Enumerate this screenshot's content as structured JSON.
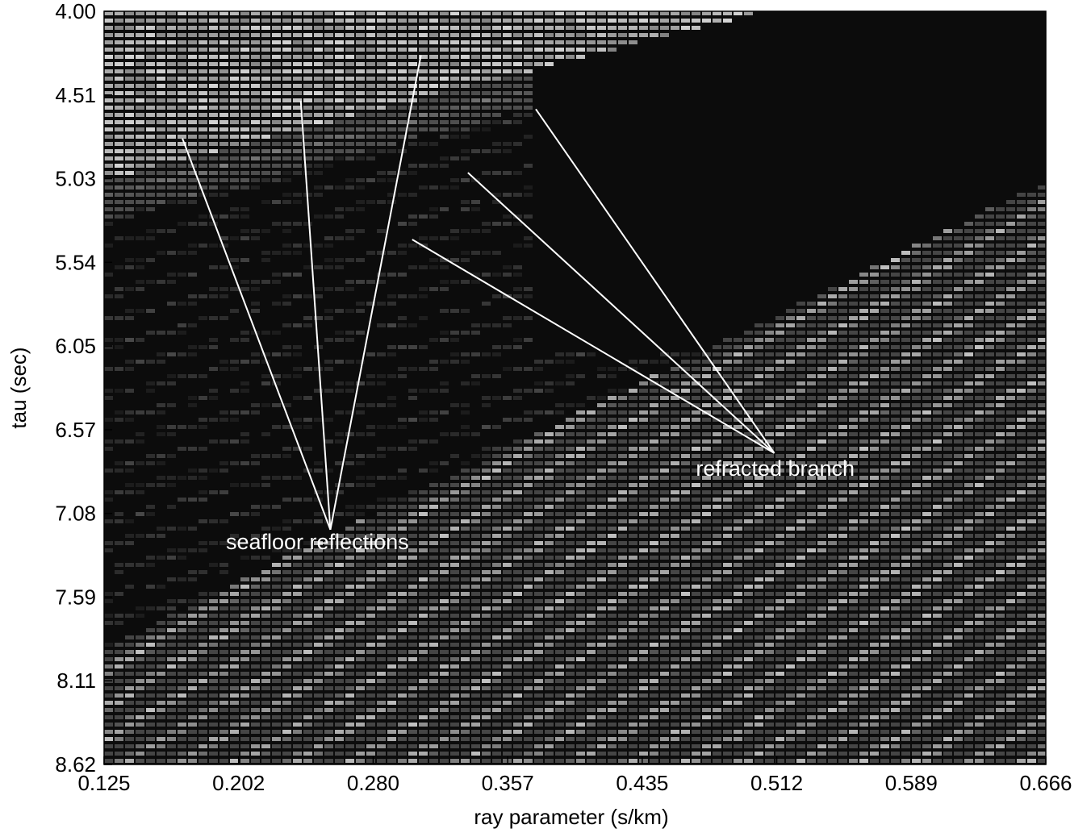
{
  "chart_data": {
    "type": "heatmap",
    "title": "",
    "xlabel": "ray parameter (s/km)",
    "ylabel": "tau (sec)",
    "xlim": [
      0.125,
      0.666
    ],
    "ylim": [
      4.0,
      8.62
    ],
    "y_inverted": true,
    "x_ticks": [
      "0.125",
      "0.202",
      "0.280",
      "0.357",
      "0.435",
      "0.512",
      "0.589",
      "0.666"
    ],
    "y_ticks": [
      "4.00",
      "4.51",
      "5.03",
      "5.54",
      "6.05",
      "6.57",
      "7.08",
      "7.59",
      "8.11",
      "8.62"
    ],
    "colormap": "grayscale",
    "grid": false,
    "annotations": [
      {
        "text": "seafloor reflections",
        "text_pos": [
          0.195,
          7.3
        ],
        "apex": [
          0.255,
          7.18
        ],
        "pointers": [
          [
            0.17,
            4.78
          ],
          [
            0.238,
            4.55
          ],
          [
            0.307,
            4.27
          ]
        ]
      },
      {
        "text": "refracted branch",
        "text_pos": [
          0.465,
          6.85
        ],
        "apex": [
          0.51,
          6.71
        ],
        "pointers": [
          [
            0.302,
            5.4
          ],
          [
            0.334,
            4.99
          ],
          [
            0.373,
            4.6
          ]
        ]
      }
    ]
  }
}
